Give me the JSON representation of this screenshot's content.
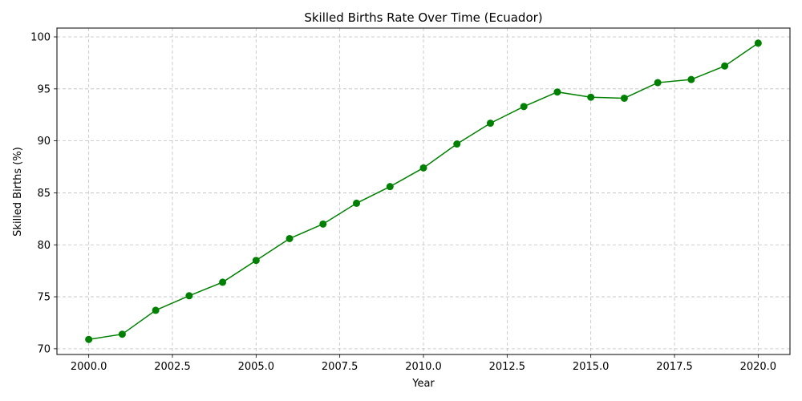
{
  "chart_data": {
    "type": "line",
    "title": "Skilled Births Rate Over Time (Ecuador)",
    "xlabel": "Year",
    "ylabel": "Skilled Births (%)",
    "xlim": [
      1999.05,
      2020.95
    ],
    "ylim": [
      69.45,
      100.85
    ],
    "x_ticks": [
      2000.0,
      2002.5,
      2005.0,
      2007.5,
      2010.0,
      2012.5,
      2015.0,
      2017.5,
      2020.0
    ],
    "x_tick_labels": [
      "2000.0",
      "2002.5",
      "2005.0",
      "2007.5",
      "2010.0",
      "2012.5",
      "2015.0",
      "2017.5",
      "2020.0"
    ],
    "y_ticks": [
      70,
      75,
      80,
      85,
      90,
      95,
      100
    ],
    "y_tick_labels": [
      "70",
      "75",
      "80",
      "85",
      "90",
      "95",
      "100"
    ],
    "grid": true,
    "color": "#008000",
    "series": [
      {
        "x": [
          2000,
          2001,
          2002,
          2003,
          2004,
          2005,
          2006,
          2007,
          2008,
          2009,
          2010,
          2011,
          2012,
          2013,
          2014,
          2015,
          2016,
          2017,
          2018,
          2019,
          2020
        ],
        "values": [
          70.9,
          71.4,
          73.7,
          75.1,
          76.4,
          78.5,
          80.6,
          82.0,
          84.0,
          85.6,
          87.4,
          89.7,
          91.7,
          93.3,
          94.7,
          94.2,
          94.1,
          95.6,
          95.9,
          97.2,
          99.4
        ]
      }
    ]
  }
}
